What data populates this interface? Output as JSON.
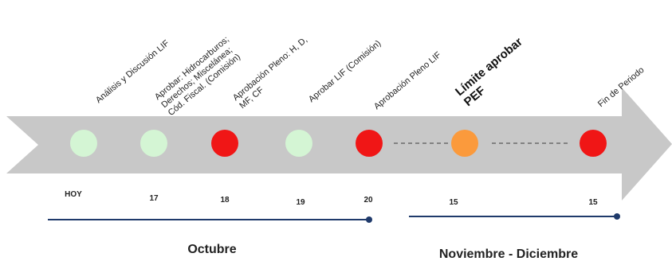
{
  "colors": {
    "arrow": "#c8c8c8",
    "done": "#d4f5d4",
    "pending": "#f01616",
    "upcoming": "#fb9a3c",
    "connector": "#6b6b6b",
    "bracket": "#1f3a6b"
  },
  "events": [
    {
      "label": "Análisis y Discusión LIF",
      "date": "HOY",
      "status": "done"
    },
    {
      "label": "Aprobar: Hidrocarburos;\nDerechos; Miscelánea;\nCód. Fiscal. (Comisión)",
      "date": "17",
      "status": "done"
    },
    {
      "label": "Aprobación Pleno: H, D,\nMF, CF",
      "date": "18",
      "status": "pending"
    },
    {
      "label": "Aprobar LIF (Comisión)",
      "date": "19",
      "status": "done"
    },
    {
      "label": "Aprobación Pleno LIF",
      "date": "20",
      "status": "pending"
    },
    {
      "label": "Límite aprobar\nPEF",
      "date": "15",
      "status": "upcoming",
      "emphasis": true
    },
    {
      "label": "Fin de Periodo",
      "date": "15",
      "status": "pending"
    }
  ],
  "periods": [
    {
      "label": "Octubre"
    },
    {
      "label": "Noviembre - Diciembre"
    }
  ]
}
